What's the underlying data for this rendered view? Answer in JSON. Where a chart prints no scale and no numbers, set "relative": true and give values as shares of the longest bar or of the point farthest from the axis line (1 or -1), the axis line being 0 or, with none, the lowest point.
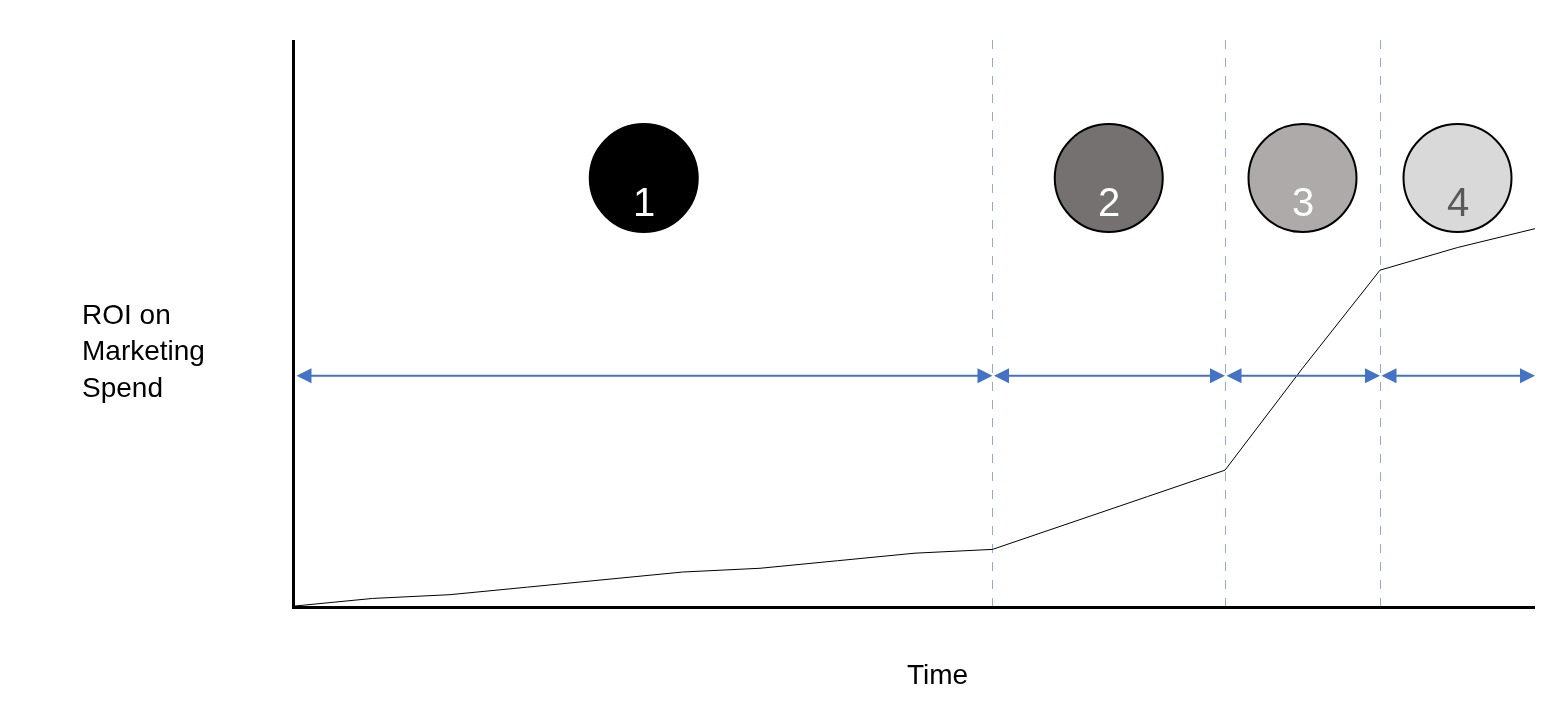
{
  "chart_data": {
    "type": "line",
    "relative": true,
    "xlabel": "Time",
    "ylabel": "ROI on\nMarketing\nSpend",
    "categories": [
      null,
      null,
      null,
      null,
      null,
      null,
      null,
      null,
      null,
      null,
      null,
      null,
      null,
      null,
      null,
      null,
      null
    ],
    "series": [
      {
        "color": "#000000",
        "values": [
          0,
          0.02,
          0.03,
          0.05,
          0.07,
          0.09,
          0.1,
          0.12,
          0.14,
          0.15,
          0.22,
          0.29,
          0.36,
          0.63,
          0.89,
          0.95,
          1
        ]
      }
    ],
    "annotations": [
      "1",
      "2",
      "3",
      "4"
    ],
    "grid": "x",
    "marker": "none",
    "line_style": "solid"
  }
}
